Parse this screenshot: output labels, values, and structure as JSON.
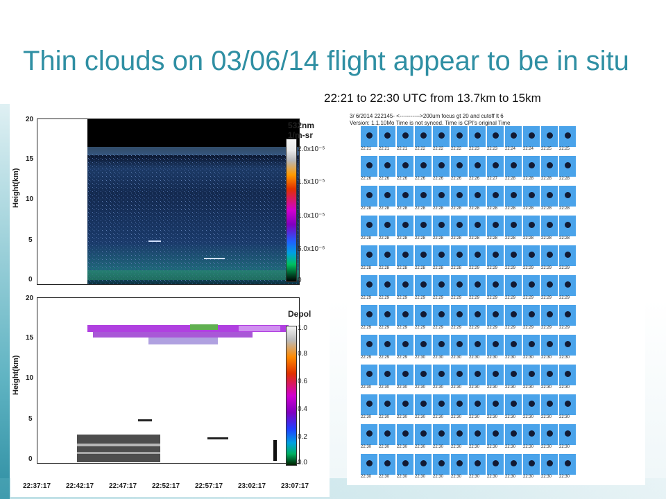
{
  "slide": {
    "title": "Thin clouds on 03/06/14 flight appear to be in situ",
    "subtitle": "22:21 to 22:30 UTC from 13.7km to 15km"
  },
  "lidar_top": {
    "title_line1": "532nm",
    "title_line2": "1/m-sr",
    "y_label": "Height(km)",
    "y_ticks": [
      "20",
      "15",
      "10",
      "5",
      "0"
    ],
    "colorbar_labels": [
      "2.0x10⁻⁵",
      "1.5x10⁻⁵",
      "1.0x10⁻⁵",
      "5.0x10⁻⁶",
      "0"
    ]
  },
  "lidar_bottom": {
    "title": "Depol",
    "y_label": "Height(km)",
    "y_ticks": [
      "20",
      "15",
      "10",
      "5",
      "0"
    ],
    "colorbar_labels": [
      "1.0",
      "0.8",
      "0.6",
      "0.4",
      "0.2",
      "0.0"
    ]
  },
  "x_ticks": [
    "22:37:17",
    "22:42:17",
    "22:47:17",
    "22:52:17",
    "22:57:17",
    "23:02:17",
    "23:07:17"
  ],
  "cpi": {
    "header_line1": "3/ 6/2014 222145-  <----------->200um focus gt 20 and cutoff lt 6",
    "header_line2": "Version: 1.1.10Mo Time is not synced.   Time is CPI's original Time",
    "rows": [
      [
        "22:21",
        "22:21",
        "22:21",
        "22:22",
        "22:22",
        "22:22",
        "22:23",
        "22:23",
        "22:24",
        "22:24",
        "22:25",
        "22:25"
      ],
      [
        "22:26",
        "22:26",
        "22:26",
        "22:26",
        "22:26",
        "22:26",
        "22:26",
        "22:27",
        "22:28",
        "22:28",
        "22:28",
        "22:28"
      ],
      [
        "22:28",
        "22:28",
        "22:28",
        "22:28",
        "22:28",
        "22:28",
        "22:28",
        "22:28",
        "22:28",
        "22:28",
        "22:28",
        "22:28"
      ],
      [
        "22:28",
        "22:28",
        "22:28",
        "22:28",
        "22:28",
        "22:28",
        "22:28",
        "22:28",
        "22:28",
        "22:28",
        "22:28",
        "22:28"
      ],
      [
        "22:28",
        "22:28",
        "22:28",
        "22:28",
        "22:28",
        "22:28",
        "22:29",
        "22:29",
        "22:29",
        "22:29",
        "22:29",
        "22:29"
      ],
      [
        "22:29",
        "22:29",
        "22:29",
        "22:29",
        "22:29",
        "22:29",
        "22:29",
        "22:29",
        "22:29",
        "22:29",
        "22:29",
        "22:29"
      ],
      [
        "22:29",
        "22:29",
        "22:29",
        "22:29",
        "22:29",
        "22:29",
        "22:29",
        "22:29",
        "22:29",
        "22:29",
        "22:29",
        "22:29"
      ],
      [
        "22:29",
        "22:29",
        "22:29",
        "22:30",
        "22:30",
        "22:30",
        "22:30",
        "22:30",
        "22:30",
        "22:30",
        "22:30",
        "22:30"
      ],
      [
        "22:30",
        "22:30",
        "22:30",
        "22:30",
        "22:30",
        "22:30",
        "22:30",
        "22:30",
        "22:30",
        "22:30",
        "22:30",
        "22:30"
      ],
      [
        "22:30",
        "22:30",
        "22:30",
        "22:30",
        "22:30",
        "22:30",
        "22:30",
        "22:30",
        "22:30",
        "22:30",
        "22:30",
        "22:30"
      ],
      [
        "22:30",
        "22:30",
        "22:30",
        "22:30",
        "22:30",
        "22:30",
        "22:30",
        "22:30",
        "22:30",
        "22:30",
        "22:30",
        "22:30"
      ],
      [
        "22:30",
        "22:30",
        "22:30",
        "22:30",
        "22:30",
        "22:30",
        "22:30",
        "22:30",
        "22:30",
        "22:30",
        "22:30",
        "22:30"
      ]
    ]
  },
  "colors": {
    "title": "#2f8fa3",
    "cpi_background": "#4aa3ea"
  }
}
